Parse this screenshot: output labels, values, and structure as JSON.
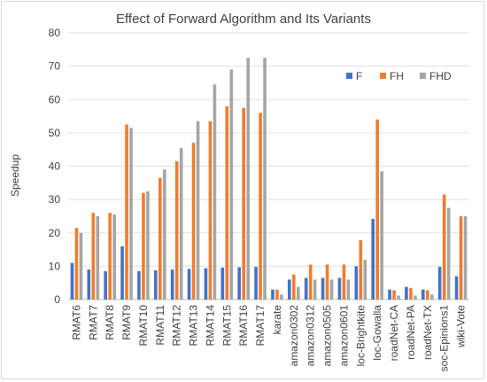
{
  "chart_data": {
    "type": "bar",
    "title": "Effect of Forward Algorithm and Its Variants",
    "xlabel": "",
    "ylabel": "Speedup",
    "ylim": [
      0,
      80
    ],
    "yticks": [
      0,
      10,
      20,
      30,
      40,
      50,
      60,
      70,
      80
    ],
    "grid": true,
    "legend_position": "top-right",
    "categories": [
      "RMAT6",
      "RMAT7",
      "RMAT8",
      "RMAT9",
      "RMAT10",
      "RMAT11",
      "RMAT12",
      "RMAT13",
      "RMAT14",
      "RMAT15",
      "RMAT16",
      "RMAT17",
      "karate",
      "amazon0302",
      "amazon0312",
      "amazon0505",
      "amazon0601",
      "loc-Brightkite",
      "loc-Gowalla",
      "roadNet-CA",
      "roadNet-PA",
      "roadNet-TX",
      "soc-Epinions1",
      "wiki-Vote"
    ],
    "series": [
      {
        "name": "F",
        "color": "#4472c4",
        "values": [
          11,
          9,
          8.5,
          16,
          8.5,
          8.8,
          9,
          9.2,
          9.4,
          9.6,
          9.7,
          9.8,
          3,
          6,
          6.5,
          6.5,
          6.5,
          10,
          24.2,
          3,
          3.8,
          3,
          9.8,
          7
        ]
      },
      {
        "name": "FH",
        "color": "#ed7d31",
        "values": [
          21.5,
          26,
          26,
          52.5,
          32,
          36.5,
          41.5,
          47,
          53.5,
          58,
          57.5,
          56,
          3,
          7.5,
          10.5,
          10.5,
          10.5,
          17.8,
          54,
          2.8,
          3.5,
          2.8,
          31.5,
          25
        ]
      },
      {
        "name": "FHD",
        "color": "#a5a5a5",
        "values": [
          20,
          25,
          25.5,
          51.5,
          32.5,
          39,
          45.5,
          53.5,
          64.5,
          69,
          72.5,
          72.5,
          1.5,
          3.8,
          6,
          6,
          6,
          12,
          38.5,
          1.2,
          1.2,
          1.5,
          27.5,
          25
        ]
      }
    ]
  }
}
